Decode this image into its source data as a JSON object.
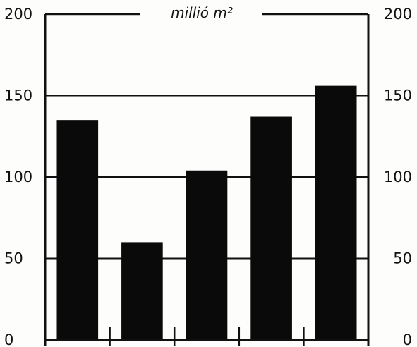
{
  "chart_data": {
    "type": "bar",
    "title": "",
    "unit_label": "millió m²",
    "xlabel": "",
    "ylabel": "",
    "categories": [
      "",
      "",
      "",
      "",
      ""
    ],
    "values": [
      135,
      60,
      104,
      137,
      156
    ],
    "ylim": [
      0,
      200
    ],
    "yticks": [
      0,
      50,
      100,
      150,
      200
    ],
    "ytick_labels_left": [
      "0",
      "50",
      "100",
      "150",
      "200"
    ],
    "ytick_labels_right": [
      "0",
      "50",
      "100",
      "150",
      "200"
    ],
    "grid": true,
    "legend": "none",
    "bar_color": "#0a0a0a",
    "line_color": "#111111"
  }
}
